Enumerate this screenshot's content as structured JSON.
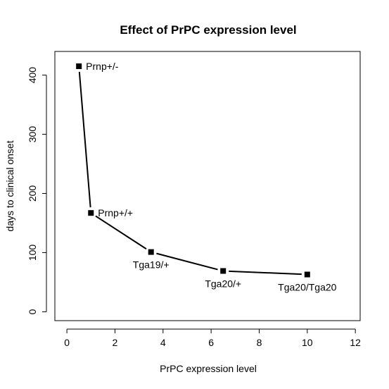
{
  "chart_data": {
    "type": "line",
    "title": "Effect of PrPC expression level",
    "xlabel": "PrPC expression level",
    "ylabel": "days to clinical onset",
    "xlim": [
      -0.5,
      12.2
    ],
    "ylim": [
      -15,
      440
    ],
    "xticks": [
      0,
      2,
      4,
      6,
      8,
      10,
      12
    ],
    "yticks": [
      0,
      100,
      200,
      300,
      400
    ],
    "grid": false,
    "points": [
      {
        "x": 0.5,
        "y": 415,
        "label": "Prnp+/-",
        "label_pos": "right"
      },
      {
        "x": 1,
        "y": 167,
        "label": "Prnp+/+",
        "label_pos": "right"
      },
      {
        "x": 3.5,
        "y": 101,
        "label": "Tga19/+",
        "label_pos": "below"
      },
      {
        "x": 6.5,
        "y": 69,
        "label": "Tga20/+",
        "label_pos": "below"
      },
      {
        "x": 10,
        "y": 63,
        "label": "Tga20/Tga20",
        "label_pos": "below"
      }
    ]
  }
}
